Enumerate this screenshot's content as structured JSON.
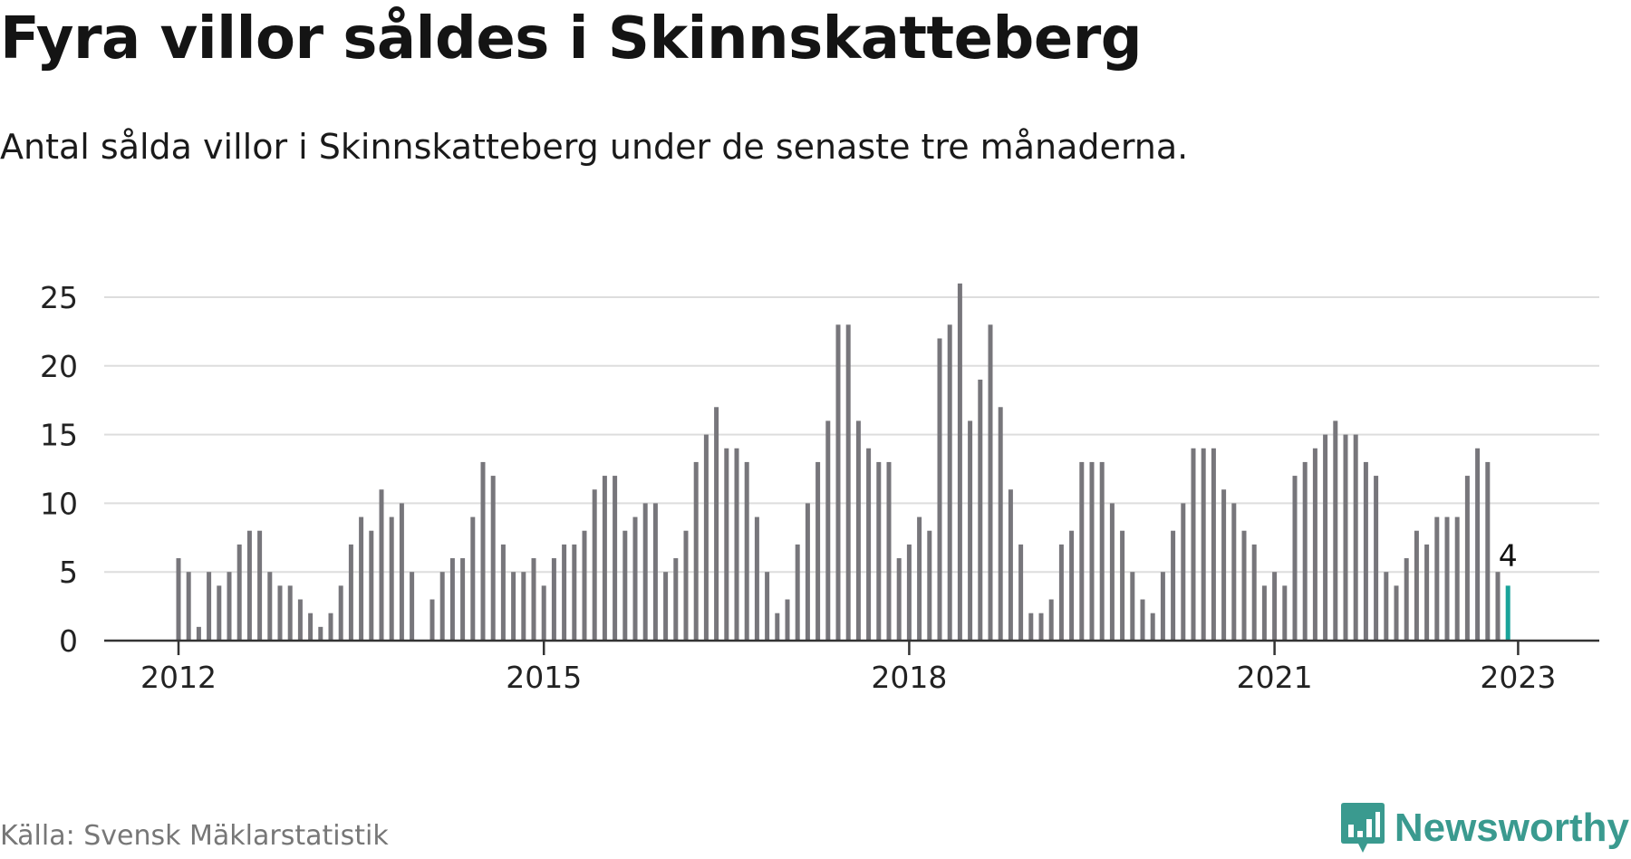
{
  "title": "Fyra villor såldes i Skinnskatteberg",
  "subtitle": "Antal sålda villor i Skinnskatteberg under de senaste tre månaderna.",
  "source": "Källa: Svensk Mäklarstatistik",
  "brand": {
    "name": "Newsworthy",
    "icon": "newsworthy-logo-icon"
  },
  "colors": {
    "bar": "#77767b",
    "highlight": "#1aa39a",
    "grid": "#dddddd",
    "axis": "#333333",
    "text": "#222222"
  },
  "chart_data": {
    "type": "bar",
    "start": "2012-01",
    "x_ticks": [
      "2012",
      "2015",
      "2018",
      "2021",
      "2023"
    ],
    "y_ticks": [
      "0",
      "5",
      "10",
      "15",
      "20",
      "25"
    ],
    "ylim": [
      0,
      26
    ],
    "xlabel": "",
    "ylabel": "",
    "grid": true,
    "highlight_label": "4",
    "values": [
      6,
      5,
      1,
      5,
      4,
      5,
      7,
      8,
      8,
      5,
      4,
      4,
      3,
      2,
      1,
      2,
      4,
      7,
      9,
      8,
      11,
      9,
      10,
      5,
      0,
      3,
      5,
      6,
      6,
      9,
      13,
      12,
      7,
      5,
      5,
      6,
      4,
      6,
      7,
      7,
      8,
      11,
      12,
      12,
      8,
      9,
      10,
      10,
      5,
      6,
      8,
      13,
      15,
      17,
      14,
      14,
      13,
      9,
      5,
      2,
      3,
      7,
      10,
      13,
      16,
      23,
      23,
      16,
      14,
      13,
      13,
      6,
      7,
      9,
      8,
      22,
      23,
      26,
      16,
      19,
      23,
      17,
      11,
      7,
      2,
      2,
      3,
      7,
      8,
      13,
      13,
      13,
      10,
      8,
      5,
      3,
      2,
      5,
      8,
      10,
      14,
      14,
      14,
      11,
      10,
      8,
      7,
      4,
      5,
      4,
      12,
      13,
      14,
      15,
      16,
      15,
      15,
      13,
      12,
      5,
      4,
      6,
      8,
      7,
      9,
      9,
      9,
      12,
      14,
      13,
      5,
      4
    ]
  }
}
